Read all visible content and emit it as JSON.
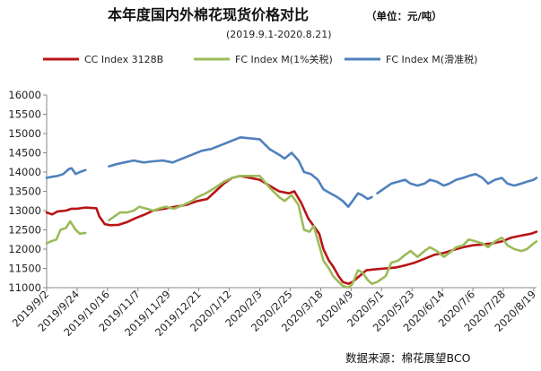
{
  "chart_data": {
    "type": "line",
    "title": "本年度国内外棉花现货价格对比",
    "unit": "（单位：元/吨）",
    "subtitle": "(2019.9.1-2020.8.21)",
    "source": "数据来源：棉花展望BCO",
    "xlabel": "",
    "ylabel": "",
    "ylim": [
      11000,
      16000
    ],
    "yticks": [
      11000,
      11500,
      12000,
      12500,
      13000,
      13500,
      14000,
      14500,
      15000,
      15500,
      16000
    ],
    "xlim": [
      "2019-09-02",
      "2020-08-21"
    ],
    "xtick_dates": [
      "2019-09-02",
      "2019-09-24",
      "2019-10-16",
      "2019-11-07",
      "2019-11-29",
      "2019-12-21",
      "2020-01-12",
      "2020-02-03",
      "2020-02-25",
      "2020-03-18",
      "2020-04-09",
      "2020-05-01",
      "2020-05-23",
      "2020-06-14",
      "2020-07-06",
      "2020-07-28",
      "2020-08-19"
    ],
    "xtick_labels": [
      "2019/9/2",
      "2019/9/24",
      "2019/10/16",
      "2019/11/7",
      "2019/11/29",
      "2019/12/21",
      "2020/1/12",
      "2020/2/3",
      "2020/2/25",
      "2020/3/18",
      "2020/4/9",
      "2020/5/1",
      "2020/5/23",
      "2020/6/14",
      "2020/7/6",
      "2020/7/28",
      "2020/8/19"
    ],
    "grid": false,
    "legend_position": "top",
    "series": [
      {
        "name": "CC Index 3128B",
        "color": "#b81417",
        "segments": [
          [
            [
              "2019-09-02",
              12950
            ],
            [
              "2019-09-06",
              12900
            ],
            [
              "2019-09-10",
              12980
            ],
            [
              "2019-09-16",
              13000
            ],
            [
              "2019-09-20",
              13050
            ],
            [
              "2019-09-24",
              13050
            ],
            [
              "2019-09-30",
              13080
            ],
            [
              "2019-10-08",
              13060
            ],
            [
              "2019-10-10",
              12850
            ],
            [
              "2019-10-14",
              12650
            ],
            [
              "2019-10-18",
              12620
            ],
            [
              "2019-10-24",
              12630
            ],
            [
              "2019-10-30",
              12700
            ],
            [
              "2019-11-05",
              12800
            ],
            [
              "2019-11-12",
              12900
            ],
            [
              "2019-11-18",
              13000
            ],
            [
              "2019-11-26",
              13050
            ],
            [
              "2019-12-04",
              13100
            ],
            [
              "2019-12-12",
              13150
            ],
            [
              "2019-12-20",
              13250
            ],
            [
              "2019-12-27",
              13300
            ],
            [
              "2020-01-02",
              13500
            ],
            [
              "2020-01-08",
              13700
            ],
            [
              "2020-01-14",
              13850
            ],
            [
              "2020-01-20",
              13900
            ],
            [
              "2020-02-03",
              13800
            ],
            [
              "2020-02-10",
              13650
            ],
            [
              "2020-02-17",
              13500
            ],
            [
              "2020-02-24",
              13450
            ],
            [
              "2020-02-28",
              13500
            ],
            [
              "2020-03-04",
              13200
            ],
            [
              "2020-03-09",
              12800
            ],
            [
              "2020-03-13",
              12600
            ],
            [
              "2020-03-17",
              12400
            ],
            [
              "2020-03-20",
              12000
            ],
            [
              "2020-03-24",
              11700
            ],
            [
              "2020-03-27",
              11550
            ],
            [
              "2020-03-31",
              11300
            ],
            [
              "2020-04-03",
              11150
            ],
            [
              "2020-04-07",
              11100
            ],
            [
              "2020-04-10",
              11150
            ],
            [
              "2020-04-15",
              11300
            ],
            [
              "2020-04-20",
              11450
            ],
            [
              "2020-04-27",
              11480
            ],
            [
              "2020-05-04",
              11500
            ],
            [
              "2020-05-11",
              11520
            ],
            [
              "2020-05-18",
              11580
            ],
            [
              "2020-05-25",
              11650
            ],
            [
              "2020-06-01",
              11750
            ],
            [
              "2020-06-08",
              11850
            ],
            [
              "2020-06-15",
              11900
            ],
            [
              "2020-06-22",
              11980
            ],
            [
              "2020-06-29",
              12050
            ],
            [
              "2020-07-06",
              12100
            ],
            [
              "2020-07-13",
              12120
            ],
            [
              "2020-07-20",
              12150
            ],
            [
              "2020-07-27",
              12200
            ],
            [
              "2020-08-03",
              12300
            ],
            [
              "2020-08-10",
              12350
            ],
            [
              "2020-08-17",
              12400
            ],
            [
              "2020-08-21",
              12450
            ]
          ]
        ]
      },
      {
        "name": "FC Index M(1%关税)",
        "color": "#9bbb59",
        "segments": [
          [
            [
              "2019-09-02",
              12150
            ],
            [
              "2019-09-05",
              12200
            ],
            [
              "2019-09-09",
              12250
            ],
            [
              "2019-09-12",
              12500
            ],
            [
              "2019-09-16",
              12550
            ],
            [
              "2019-09-19",
              12720
            ],
            [
              "2019-09-23",
              12500
            ],
            [
              "2019-09-26",
              12400
            ],
            [
              "2019-09-30",
              12420
            ]
          ],
          [
            [
              "2019-10-17",
              12750
            ],
            [
              "2019-10-21",
              12850
            ],
            [
              "2019-10-25",
              12950
            ],
            [
              "2019-10-30",
              12950
            ],
            [
              "2019-11-04",
              13000
            ],
            [
              "2019-11-08",
              13100
            ],
            [
              "2019-11-13",
              13050
            ],
            [
              "2019-11-18",
              13000
            ],
            [
              "2019-11-22",
              13050
            ],
            [
              "2019-11-27",
              13100
            ],
            [
              "2019-12-03",
              13050
            ],
            [
              "2019-12-10",
              13150
            ],
            [
              "2019-12-16",
              13250
            ],
            [
              "2019-12-20",
              13350
            ],
            [
              "2019-12-26",
              13450
            ],
            [
              "2020-01-02",
              13600
            ],
            [
              "2020-01-08",
              13750
            ],
            [
              "2020-01-14",
              13850
            ],
            [
              "2020-01-20",
              13900
            ],
            [
              "2020-02-03",
              13900
            ],
            [
              "2020-02-10",
              13600
            ],
            [
              "2020-02-17",
              13350
            ],
            [
              "2020-02-21",
              13250
            ],
            [
              "2020-02-26",
              13400
            ],
            [
              "2020-03-02",
              13150
            ],
            [
              "2020-03-06",
              12500
            ],
            [
              "2020-03-10",
              12450
            ],
            [
              "2020-03-13",
              12600
            ],
            [
              "2020-03-17",
              12100
            ],
            [
              "2020-03-20",
              11700
            ],
            [
              "2020-03-24",
              11500
            ],
            [
              "2020-03-27",
              11300
            ],
            [
              "2020-03-31",
              11150
            ],
            [
              "2020-04-03",
              11050
            ],
            [
              "2020-04-07",
              11000
            ],
            [
              "2020-04-10",
              11100
            ],
            [
              "2020-04-14",
              11450
            ],
            [
              "2020-04-17",
              11400
            ],
            [
              "2020-04-21",
              11200
            ],
            [
              "2020-04-24",
              11100
            ],
            [
              "2020-04-28",
              11150
            ],
            [
              "2020-05-04",
              11300
            ],
            [
              "2020-05-08",
              11650
            ],
            [
              "2020-05-13",
              11700
            ],
            [
              "2020-05-18",
              11850
            ],
            [
              "2020-05-22",
              11950
            ],
            [
              "2020-05-27",
              11800
            ],
            [
              "2020-06-01",
              11950
            ],
            [
              "2020-06-05",
              12050
            ],
            [
              "2020-06-10",
              11950
            ],
            [
              "2020-06-15",
              11800
            ],
            [
              "2020-06-19",
              11900
            ],
            [
              "2020-06-24",
              12050
            ],
            [
              "2020-06-29",
              12100
            ],
            [
              "2020-07-03",
              12250
            ],
            [
              "2020-07-08",
              12200
            ],
            [
              "2020-07-13",
              12150
            ],
            [
              "2020-07-17",
              12050
            ],
            [
              "2020-07-22",
              12200
            ],
            [
              "2020-07-27",
              12300
            ],
            [
              "2020-07-31",
              12100
            ],
            [
              "2020-08-05",
              12000
            ],
            [
              "2020-08-10",
              11950
            ],
            [
              "2020-08-14",
              12000
            ],
            [
              "2020-08-19",
              12150
            ],
            [
              "2020-08-21",
              12200
            ]
          ]
        ]
      },
      {
        "name": "FC Index M(滑准税)",
        "color": "#4f81bd",
        "segments": [
          [
            [
              "2019-09-02",
              13850
            ],
            [
              "2019-09-06",
              13880
            ],
            [
              "2019-09-10",
              13900
            ],
            [
              "2019-09-14",
              13950
            ],
            [
              "2019-09-18",
              14080
            ],
            [
              "2019-09-20",
              14100
            ],
            [
              "2019-09-23",
              13950
            ],
            [
              "2019-09-26",
              14000
            ],
            [
              "2019-09-30",
              14050
            ]
          ],
          [
            [
              "2019-10-17",
              14150
            ],
            [
              "2019-10-22",
              14200
            ],
            [
              "2019-10-28",
              14250
            ],
            [
              "2019-11-04",
              14300
            ],
            [
              "2019-11-11",
              14250
            ],
            [
              "2019-11-18",
              14280
            ],
            [
              "2019-11-25",
              14300
            ],
            [
              "2019-12-02",
              14250
            ],
            [
              "2019-12-09",
              14350
            ],
            [
              "2019-12-16",
              14450
            ],
            [
              "2019-12-23",
              14550
            ],
            [
              "2019-12-30",
              14600
            ],
            [
              "2020-01-06",
              14700
            ],
            [
              "2020-01-13",
              14800
            ],
            [
              "2020-01-20",
              14900
            ],
            [
              "2020-02-03",
              14850
            ],
            [
              "2020-02-10",
              14600
            ],
            [
              "2020-02-17",
              14450
            ],
            [
              "2020-02-21",
              14350
            ],
            [
              "2020-02-26",
              14500
            ],
            [
              "2020-03-02",
              14300
            ],
            [
              "2020-03-06",
              14000
            ],
            [
              "2020-03-11",
              13950
            ],
            [
              "2020-03-16",
              13800
            ],
            [
              "2020-03-20",
              13550
            ],
            [
              "2020-03-25",
              13450
            ],
            [
              "2020-03-30",
              13350
            ],
            [
              "2020-04-03",
              13250
            ],
            [
              "2020-04-07",
              13100
            ],
            [
              "2020-04-10",
              13250
            ],
            [
              "2020-04-14",
              13450
            ],
            [
              "2020-04-17",
              13400
            ],
            [
              "2020-04-21",
              13300
            ],
            [
              "2020-04-24",
              13350
            ]
          ],
          [
            [
              "2020-04-28",
              13450
            ],
            [
              "2020-05-04",
              13600
            ],
            [
              "2020-05-08",
              13700
            ],
            [
              "2020-05-13",
              13750
            ],
            [
              "2020-05-18",
              13800
            ],
            [
              "2020-05-22",
              13700
            ],
            [
              "2020-05-27",
              13650
            ],
            [
              "2020-06-01",
              13700
            ],
            [
              "2020-06-05",
              13800
            ],
            [
              "2020-06-10",
              13750
            ],
            [
              "2020-06-15",
              13650
            ],
            [
              "2020-06-19",
              13700
            ],
            [
              "2020-06-24",
              13800
            ],
            [
              "2020-06-29",
              13850
            ],
            [
              "2020-07-03",
              13900
            ],
            [
              "2020-07-08",
              13950
            ],
            [
              "2020-07-13",
              13850
            ],
            [
              "2020-07-17",
              13700
            ],
            [
              "2020-07-22",
              13800
            ],
            [
              "2020-07-27",
              13850
            ],
            [
              "2020-07-31",
              13700
            ],
            [
              "2020-08-05",
              13650
            ],
            [
              "2020-08-10",
              13700
            ],
            [
              "2020-08-14",
              13750
            ],
            [
              "2020-08-19",
              13800
            ],
            [
              "2020-08-21",
              13850
            ]
          ]
        ]
      }
    ]
  }
}
